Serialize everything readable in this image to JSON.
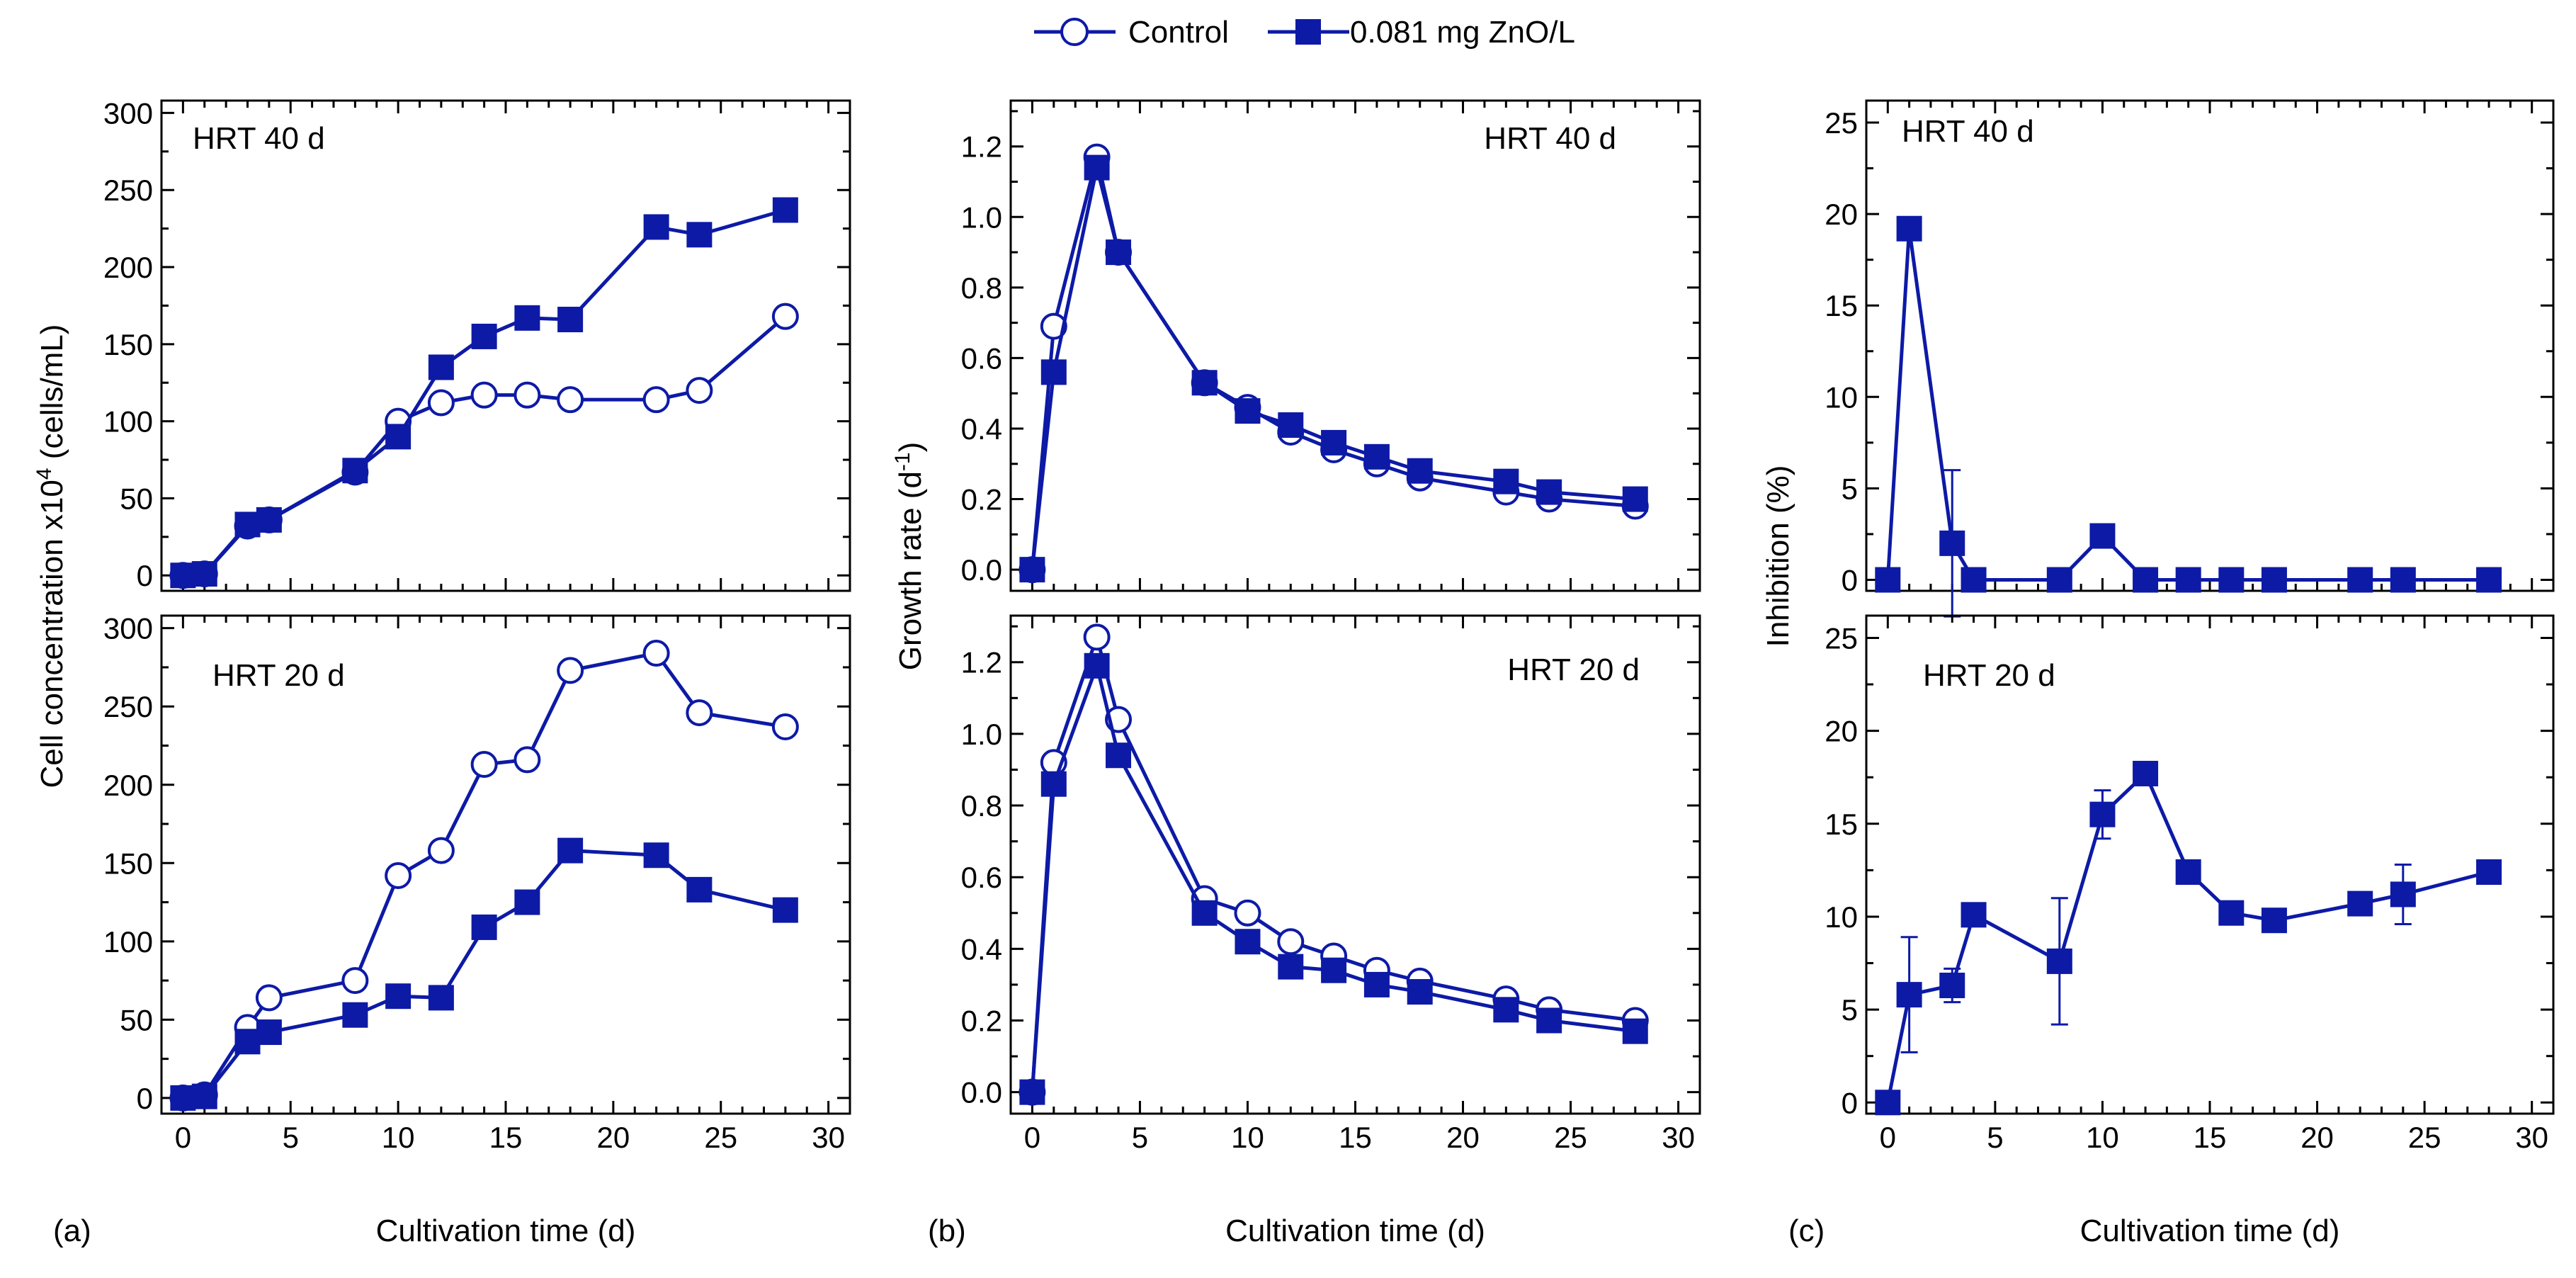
{
  "colors": {
    "series": "#0d1aa6",
    "axis": "#000000",
    "background": "#ffffff"
  },
  "legend": {
    "placement": "top-center",
    "items": [
      {
        "label": "Control",
        "marker": "open-circle"
      },
      {
        "label": "0.081 mg ZnO/L",
        "marker": "filled-square"
      }
    ]
  },
  "panel_labels": [
    "(a)",
    "(b)",
    "(c)"
  ],
  "chart_data": [
    {
      "id": "a-top",
      "type": "line",
      "panel": "(a)",
      "label": "HRT 40 d",
      "ylabel": "Cell concentration  x10^4 (cells/mL)",
      "xlabel": "",
      "xlim": [
        -1,
        31
      ],
      "ylim": [
        -10,
        308
      ],
      "xticks": [
        0,
        5,
        10,
        15,
        20,
        25,
        30
      ],
      "yticks": [
        0,
        50,
        100,
        150,
        200,
        250,
        300
      ],
      "series": [
        {
          "name": "Control",
          "marker": "circle",
          "x": [
            0,
            1,
            3,
            4,
            8,
            10,
            12,
            14,
            16,
            18,
            22,
            24,
            28
          ],
          "y": [
            0,
            1,
            32,
            36,
            67,
            100,
            112,
            117,
            117,
            114,
            114,
            120,
            168
          ]
        },
        {
          "name": "0.081 mg ZnO/L",
          "marker": "square",
          "x": [
            0,
            1,
            3,
            4,
            8,
            10,
            12,
            14,
            16,
            18,
            22,
            24,
            28
          ],
          "y": [
            0,
            1,
            33,
            36,
            68,
            90,
            135,
            155,
            167,
            166,
            226,
            221,
            237
          ]
        }
      ]
    },
    {
      "id": "a-bottom",
      "type": "line",
      "panel": "(a)",
      "label": "HRT 20 d",
      "ylabel": "",
      "xlabel": "Cultivation time (d)",
      "xlim": [
        -1,
        31
      ],
      "ylim": [
        -10,
        308
      ],
      "xticks": [
        0,
        5,
        10,
        15,
        20,
        25,
        30
      ],
      "yticks": [
        0,
        50,
        100,
        150,
        200,
        250,
        300
      ],
      "series": [
        {
          "name": "Control",
          "marker": "circle",
          "x": [
            0,
            1,
            3,
            4,
            8,
            10,
            12,
            14,
            16,
            18,
            22,
            24,
            28
          ],
          "y": [
            0,
            2,
            45,
            64,
            75,
            142,
            158,
            213,
            216,
            273,
            284,
            246,
            237
          ]
        },
        {
          "name": "0.081 mg ZnO/L",
          "marker": "square",
          "x": [
            0,
            1,
            3,
            4,
            8,
            10,
            12,
            14,
            16,
            18,
            22,
            24,
            28
          ],
          "y": [
            0,
            1,
            36,
            42,
            53,
            65,
            64,
            109,
            125,
            158,
            155,
            133,
            120
          ]
        }
      ]
    },
    {
      "id": "b-top",
      "type": "line",
      "panel": "(b)",
      "label": "HRT 40 d",
      "ylabel": "Growth rate (d^-1)",
      "xlabel": "",
      "xlim": [
        -1,
        31
      ],
      "ylim": [
        -0.06,
        1.33
      ],
      "xticks": [
        0,
        5,
        10,
        15,
        20,
        25,
        30
      ],
      "yticks": [
        0.0,
        0.2,
        0.4,
        0.6,
        0.8,
        1.0,
        1.2
      ],
      "series": [
        {
          "name": "Control",
          "marker": "circle",
          "x": [
            0,
            1,
            3,
            4,
            8,
            10,
            12,
            14,
            16,
            18,
            22,
            24,
            28
          ],
          "y": [
            0.0,
            0.69,
            1.17,
            0.9,
            0.53,
            0.46,
            0.39,
            0.34,
            0.3,
            0.26,
            0.22,
            0.2,
            0.18
          ]
        },
        {
          "name": "0.081 mg ZnO/L",
          "marker": "square",
          "x": [
            0,
            1,
            3,
            4,
            8,
            10,
            12,
            14,
            16,
            18,
            22,
            24,
            28
          ],
          "y": [
            0.0,
            0.56,
            1.14,
            0.9,
            0.53,
            0.45,
            0.41,
            0.36,
            0.32,
            0.28,
            0.25,
            0.22,
            0.2
          ]
        }
      ]
    },
    {
      "id": "b-bottom",
      "type": "line",
      "panel": "(b)",
      "label": "HRT 20 d",
      "ylabel": "",
      "xlabel": "Cultivation time (d)",
      "xlim": [
        -1,
        31
      ],
      "ylim": [
        -0.06,
        1.33
      ],
      "xticks": [
        0,
        5,
        10,
        15,
        20,
        25,
        30
      ],
      "yticks": [
        0.0,
        0.2,
        0.4,
        0.6,
        0.8,
        1.0,
        1.2
      ],
      "series": [
        {
          "name": "Control",
          "marker": "circle",
          "x": [
            0,
            1,
            3,
            4,
            8,
            10,
            12,
            14,
            16,
            18,
            22,
            24,
            28
          ],
          "y": [
            0.0,
            0.92,
            1.27,
            1.04,
            0.54,
            0.5,
            0.42,
            0.38,
            0.34,
            0.31,
            0.26,
            0.23,
            0.2
          ]
        },
        {
          "name": "0.081 mg ZnO/L",
          "marker": "square",
          "x": [
            0,
            1,
            3,
            4,
            8,
            10,
            12,
            14,
            16,
            18,
            22,
            24,
            28
          ],
          "y": [
            0.0,
            0.86,
            1.19,
            0.94,
            0.5,
            0.42,
            0.35,
            0.34,
            0.3,
            0.28,
            0.23,
            0.2,
            0.17
          ]
        }
      ]
    },
    {
      "id": "c-top",
      "type": "line",
      "panel": "(c)",
      "label": "HRT 40 d",
      "ylabel": "Inhibition (%)",
      "xlabel": "",
      "xlim": [
        -1,
        31
      ],
      "ylim": [
        -0.6,
        26.2
      ],
      "xticks": [
        0,
        5,
        10,
        15,
        20,
        25,
        30
      ],
      "yticks": [
        0,
        5,
        10,
        15,
        20,
        25
      ],
      "series": [
        {
          "name": "0.081 mg ZnO/L",
          "marker": "square",
          "x": [
            0,
            1,
            3,
            4,
            8,
            10,
            12,
            14,
            16,
            18,
            22,
            24,
            28
          ],
          "y": [
            0,
            19.2,
            2.0,
            0,
            0,
            2.4,
            0,
            0,
            0,
            0,
            0,
            0,
            0
          ],
          "err": [
            0,
            0.4,
            4.0,
            0,
            0,
            0.4,
            0,
            0,
            0,
            0,
            0,
            0,
            0
          ]
        }
      ]
    },
    {
      "id": "c-bottom",
      "type": "line",
      "panel": "(c)",
      "label": "HRT 20 d",
      "ylabel": "",
      "xlabel": "Cultivation  time (d)",
      "xlim": [
        -1,
        31
      ],
      "ylim": [
        -0.6,
        26.2
      ],
      "xticks": [
        0,
        5,
        10,
        15,
        20,
        25,
        30
      ],
      "yticks": [
        0,
        5,
        10,
        15,
        20,
        25
      ],
      "series": [
        {
          "name": "0.081 mg ZnO/L",
          "marker": "square",
          "x": [
            0,
            1,
            3,
            4,
            8,
            10,
            12,
            14,
            16,
            18,
            22,
            24,
            28
          ],
          "y": [
            0,
            5.8,
            6.3,
            10.1,
            7.6,
            15.5,
            17.7,
            12.4,
            10.2,
            9.8,
            10.7,
            11.2,
            12.4
          ],
          "err": [
            0,
            3.1,
            0.9,
            0,
            3.4,
            1.3,
            0.3,
            0,
            0,
            0,
            0,
            1.6,
            0
          ]
        }
      ]
    }
  ]
}
